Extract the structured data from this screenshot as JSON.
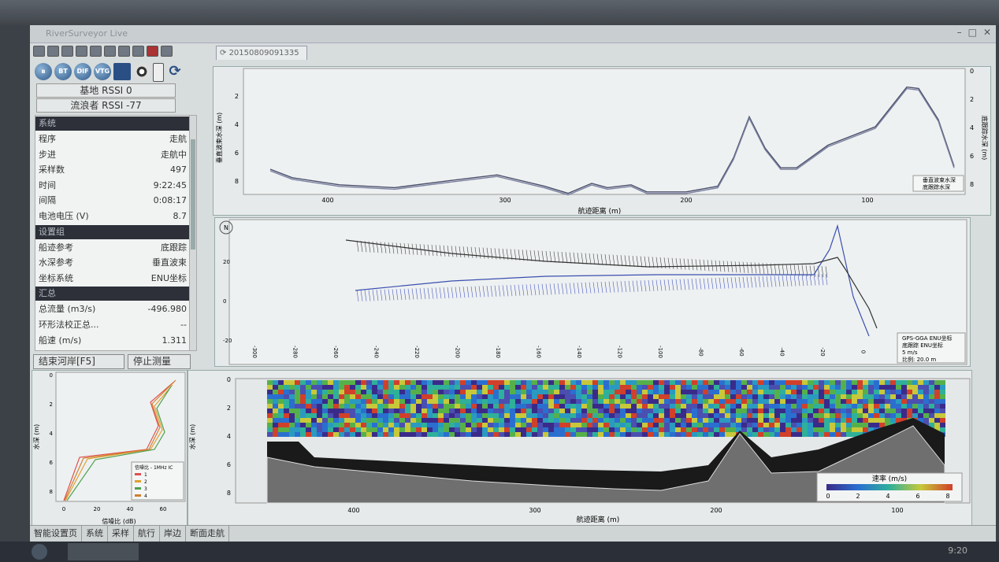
{
  "window": {
    "app_title": "RiverSurveyor Live",
    "tab_label": "20150809091335"
  },
  "toolbar_icons": [
    "open-icon",
    "save-icon",
    "tools-icon",
    "settings-icon",
    "record-icon",
    "pin-icon",
    "compass-icon",
    "edit-icon",
    "color-icon",
    "help-icon"
  ],
  "icons_row": [
    {
      "name": "bluetooth-icon",
      "label": "BT"
    },
    {
      "name": "bt-icon",
      "label": "BT"
    },
    {
      "name": "dif-icon",
      "label": "DIF"
    },
    {
      "name": "vtg-icon",
      "label": "VTG"
    },
    {
      "name": "blue-square-icon",
      "label": ""
    },
    {
      "name": "reel-icon",
      "label": ""
    },
    {
      "name": "battery-icon",
      "label": ""
    },
    {
      "name": "refresh-icon",
      "label": ""
    }
  ],
  "rssi": {
    "base": "基地 RSSI 0",
    "rover": "流浪者 RSSI -77"
  },
  "panel": {
    "system_title": "系统",
    "system_rows": [
      {
        "label": "程序",
        "value": "走航"
      },
      {
        "label": "步进",
        "value": "走航中"
      },
      {
        "label": "采样数",
        "value": "497"
      },
      {
        "label": "时间",
        "value": "9:22:45"
      },
      {
        "label": "间隔",
        "value": "0:08:17"
      },
      {
        "label": "电池电压 (V)",
        "value": "8.7"
      }
    ],
    "settings_title": "设置组",
    "settings_rows": [
      {
        "label": "船迹参考",
        "value": "底跟踪"
      },
      {
        "label": "水深参考",
        "value": "垂直波束"
      },
      {
        "label": "坐标系统",
        "value": "ENU坐标"
      }
    ],
    "summary_title": "汇总",
    "summary_rows": [
      {
        "label": "总流量 (m3/s)",
        "value": "-496.980"
      },
      {
        "label": "环形法校正总...",
        "value": "--"
      },
      {
        "label": "船速 (m/s)",
        "value": "1.311"
      }
    ]
  },
  "buttons": {
    "end_shore": "结束河岸[F5]",
    "stop_measure": "停止测量[F8"
  },
  "status_tabs": [
    "智能设置页",
    "系统",
    "采样",
    "航行",
    "岸边",
    "断面走航"
  ],
  "charts": {
    "depth": {
      "ylabel": "垂直波束水深 (m)",
      "y2label": "底跟踪水深 (m)",
      "xlabel": "航迹距离 (m)",
      "legend": [
        "垂直波束水深",
        "底跟踪水深"
      ],
      "xticks": [
        "400",
        "300",
        "200",
        "100"
      ],
      "yticks": [
        "2",
        "4",
        "6",
        "8"
      ],
      "y2ticks": [
        "0",
        "2",
        "4",
        "6",
        "8"
      ]
    },
    "track": {
      "xticks": [
        "-300",
        "-280",
        "-260",
        "-240",
        "-220",
        "-200",
        "-180",
        "-160",
        "-140",
        "-120",
        "-100",
        "-80",
        "-60",
        "-40",
        "-20",
        "0"
      ],
      "yticks": [
        "20",
        "0",
        "-20"
      ],
      "legend": [
        "GPS-GGA ENU坐标",
        "底跟踪 ENU坐标",
        "5 m/s",
        "比例: 20.0 m"
      ],
      "north": "N"
    },
    "velocity": {
      "ylabel": "水深 (m)",
      "xlabel": "航迹距离 (m)",
      "xticks": [
        "400",
        "300",
        "200",
        "100"
      ],
      "yticks": [
        "0",
        "2",
        "4",
        "6",
        "8"
      ],
      "colorbar_title": "速率 (m/s)",
      "colorbar_ticks": [
        "0",
        "2",
        "4",
        "6",
        "8"
      ]
    },
    "profile": {
      "ylabel": "水深 (m)",
      "xlabel": "信噪比 (dB)",
      "xticks": [
        "0",
        "20",
        "40",
        "60"
      ],
      "yticks": [
        "0",
        "2",
        "4",
        "6",
        "8"
      ],
      "legend_title": "信噪比 - 1MHz IC",
      "legend": [
        "1",
        "2",
        "3",
        "4"
      ]
    }
  },
  "taskbar": {
    "clock": "9:20"
  },
  "colors": {
    "beam1": "#e05050",
    "beam2": "#e0a030",
    "beam3": "#50a050",
    "beam4": "#d08030",
    "track_gps": "#333333",
    "track_bt": "#3a4fb0"
  }
}
